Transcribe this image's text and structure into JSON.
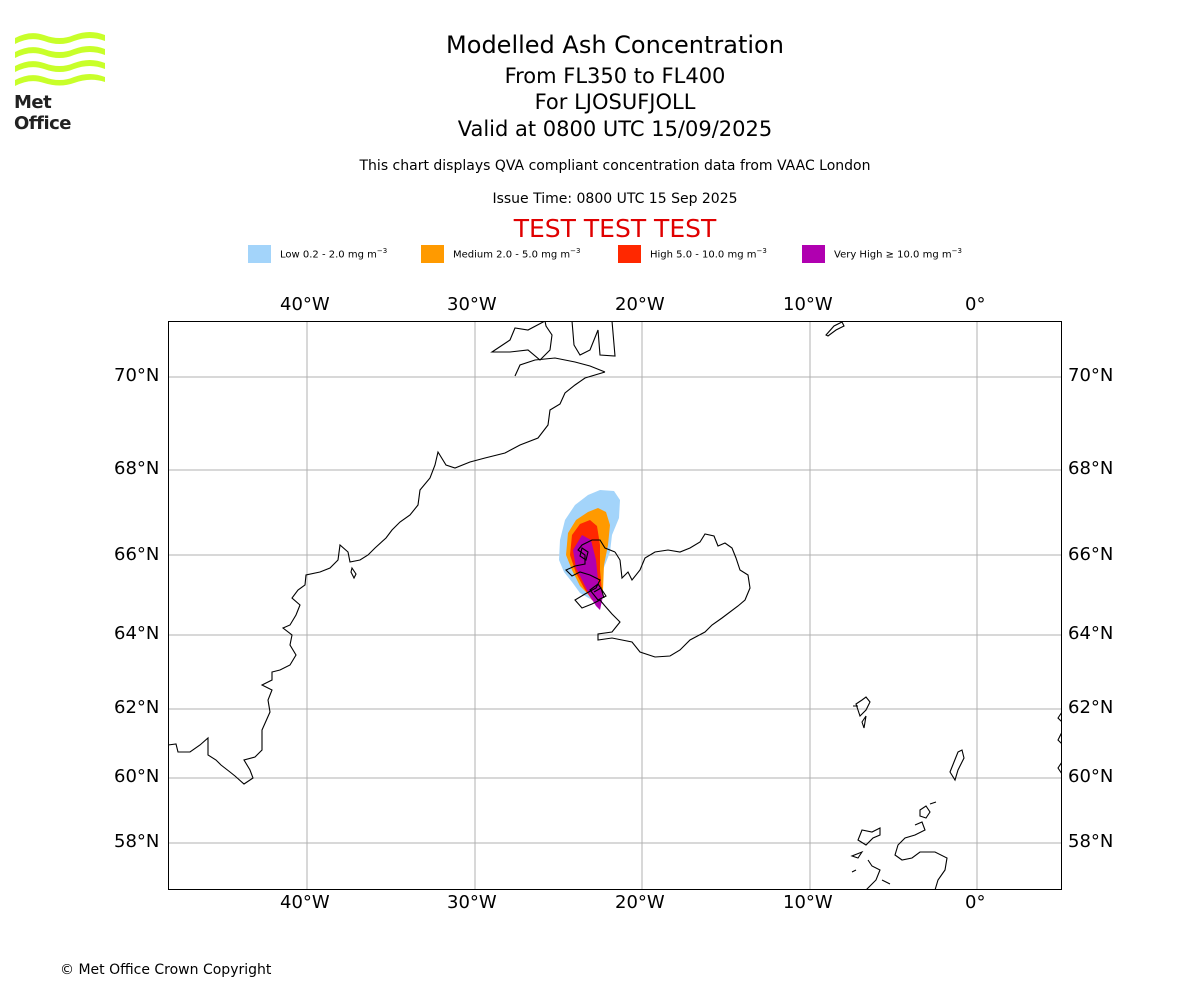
{
  "logo": {
    "name": "Met Office",
    "icon": "met-office-waves-icon",
    "color": "#c8ff2a"
  },
  "title": {
    "main": "Modelled Ash Concentration",
    "levels": "From FL350 to FL400",
    "volcano": "For LJOSUFJOLL",
    "valid": "Valid at 0800 UTC 15/09/2025"
  },
  "subtitle": "This chart displays QVA compliant concentration data from VAAC London",
  "issue_time": "Issue Time: 0800 UTC 15 Sep 2025",
  "test_banner": "TEST TEST TEST",
  "legend": [
    {
      "label": "Low 0.2 - 2.0 mg m",
      "color": "#a3d4fa"
    },
    {
      "label": "Medium 2.0 - 5.0 mg m",
      "color": "#ff9a00"
    },
    {
      "label": "High 5.0 - 10.0 mg m",
      "color": "#ff2800"
    },
    {
      "label": "Very High  ≥  10.0 mg m",
      "color": "#b000b0"
    }
  ],
  "legend_unit_exponent": "−3",
  "map": {
    "lon_labels": [
      "40°W",
      "30°W",
      "20°W",
      "10°W",
      "0°"
    ],
    "lat_labels": [
      "70°N",
      "68°N",
      "66°N",
      "64°N",
      "62°N",
      "60°N",
      "58°N"
    ],
    "gridline_color": "#b0b0b0",
    "coastline_color": "#000000"
  },
  "copyright": "© Met Office Crown Copyright"
}
